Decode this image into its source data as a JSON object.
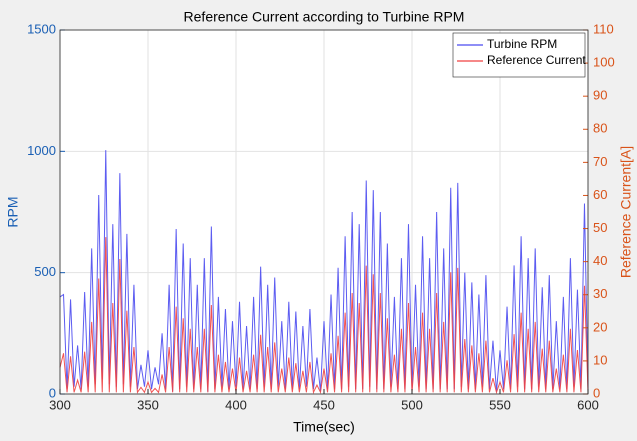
{
  "chart_data": {
    "type": "line",
    "title": "Reference Current according to Turbine RPM",
    "xlabel": "Time(sec)",
    "ylabel": "RPM",
    "y2label": "Reference Current[A]",
    "axis_colors": {
      "y": "#1a5fb4",
      "y2": "#d95319"
    },
    "xlim": [
      300,
      600
    ],
    "xticks": [
      300,
      350,
      400,
      450,
      500,
      550,
      600
    ],
    "ylim": [
      0,
      1500
    ],
    "yticks": [
      0,
      500,
      1000,
      1500
    ],
    "y2lim": [
      0,
      110
    ],
    "y2ticks": [
      0,
      10,
      20,
      30,
      40,
      50,
      60,
      70,
      80,
      90,
      100,
      110
    ],
    "grid": true,
    "legend_position": "upper right",
    "x": [
      300,
      302,
      304,
      306,
      308,
      310,
      312,
      314,
      316,
      318,
      320,
      322,
      324,
      326,
      328,
      330,
      332,
      334,
      336,
      338,
      340,
      342,
      344,
      346,
      348,
      350,
      352,
      354,
      356,
      358,
      360,
      362,
      364,
      366,
      368,
      370,
      372,
      374,
      376,
      378,
      380,
      382,
      384,
      386,
      388,
      390,
      392,
      394,
      396,
      398,
      400,
      402,
      404,
      406,
      408,
      410,
      412,
      414,
      416,
      418,
      420,
      422,
      424,
      426,
      428,
      430,
      432,
      434,
      436,
      438,
      440,
      442,
      444,
      446,
      448,
      450,
      452,
      454,
      456,
      458,
      460,
      462,
      464,
      466,
      468,
      470,
      472,
      474,
      476,
      478,
      480,
      482,
      484,
      486,
      488,
      490,
      492,
      494,
      496,
      498,
      500,
      502,
      504,
      506,
      508,
      510,
      512,
      514,
      516,
      518,
      520,
      522,
      524,
      526,
      528,
      530,
      532,
      534,
      536,
      538,
      540,
      542,
      544,
      546,
      548,
      550,
      552,
      554,
      556,
      558,
      560,
      562,
      564,
      566,
      568,
      570,
      572,
      574,
      576,
      578,
      580,
      582,
      584,
      586,
      588,
      590,
      592,
      594,
      596,
      598,
      600
    ],
    "series": [
      {
        "name": "Turbine RPM",
        "color": "#4a4af0",
        "values": [
          400,
          410,
          20,
          390,
          30,
          200,
          20,
          420,
          30,
          600,
          40,
          820,
          60,
          1005,
          40,
          700,
          30,
          910,
          40,
          660,
          30,
          450,
          20,
          120,
          30,
          180,
          20,
          110,
          40,
          250,
          20,
          450,
          10,
          680,
          20,
          620,
          30,
          560,
          20,
          450,
          20,
          560,
          10,
          690,
          20,
          400,
          30,
          350,
          20,
          300,
          30,
          380,
          20,
          280,
          20,
          400,
          20,
          525,
          30,
          450,
          20,
          480,
          30,
          300,
          20,
          380,
          20,
          340,
          20,
          280,
          30,
          350,
          20,
          150,
          10,
          300,
          20,
          410,
          20,
          520,
          20,
          650,
          30,
          750,
          20,
          700,
          20,
          880,
          30,
          840,
          20,
          750,
          20,
          620,
          30,
          400,
          20,
          560,
          20,
          700,
          20,
          450,
          30,
          650,
          20,
          560,
          20,
          750,
          20,
          600,
          20,
          850,
          20,
          870,
          30,
          500,
          20,
          460,
          20,
          410,
          30,
          490,
          20,
          220,
          10,
          180,
          20,
          360,
          20,
          530,
          30,
          650,
          20,
          560,
          20,
          600,
          30,
          440,
          20,
          490,
          20,
          300,
          20,
          400,
          20,
          560,
          30,
          430,
          20,
          785,
          20
        ]
      },
      {
        "name": "Reference Current",
        "color": "#f04040",
        "axis": "y2",
        "values": [
          8,
          12.3,
          0.5,
          11.4,
          0.5,
          4.2,
          0.5,
          12.8,
          0.5,
          21.8,
          0.5,
          34.9,
          0.5,
          47.4,
          0.5,
          27.5,
          0.5,
          40.8,
          0.5,
          25.2,
          0.5,
          14.2,
          0.5,
          2.0,
          0.5,
          3.6,
          0.5,
          1.7,
          0.5,
          5.9,
          0.5,
          14.2,
          0.5,
          26.4,
          0.5,
          22.9,
          0.5,
          19.7,
          0.5,
          14.2,
          0.5,
          19.7,
          0.5,
          26.9,
          0.5,
          11.9,
          0.5,
          9.7,
          0.5,
          7.7,
          0.5,
          11.0,
          0.5,
          7.0,
          0.5,
          11.9,
          0.5,
          17.9,
          0.5,
          14.2,
          0.5,
          15.6,
          0.5,
          7.7,
          0.5,
          11.0,
          0.5,
          9.3,
          0.5,
          7.0,
          0.5,
          9.7,
          0.5,
          2.7,
          0.5,
          7.7,
          0.5,
          12.3,
          0.5,
          17.6,
          0.5,
          24.6,
          0.5,
          30.5,
          0.5,
          27.5,
          0.5,
          38.8,
          0.5,
          36.2,
          0.5,
          30.5,
          0.5,
          22.9,
          0.5,
          11.9,
          0.5,
          19.7,
          0.5,
          27.5,
          0.5,
          14.2,
          0.5,
          24.6,
          0.5,
          19.7,
          0.5,
          30.5,
          0.5,
          21.8,
          0.5,
          36.8,
          0.5,
          38.1,
          0.5,
          16.6,
          0.5,
          14.7,
          0.5,
          12.3,
          0.5,
          16.1,
          0.5,
          4.8,
          0.5,
          3.6,
          0.5,
          10.2,
          0.5,
          18.1,
          0.5,
          24.6,
          0.5,
          19.7,
          0.5,
          21.8,
          0.5,
          13.7,
          0.5,
          16.1,
          0.5,
          7.7,
          0.5,
          11.9,
          0.5,
          19.7,
          0.5,
          13.3,
          0.5,
          32.7,
          0.5
        ]
      }
    ]
  }
}
